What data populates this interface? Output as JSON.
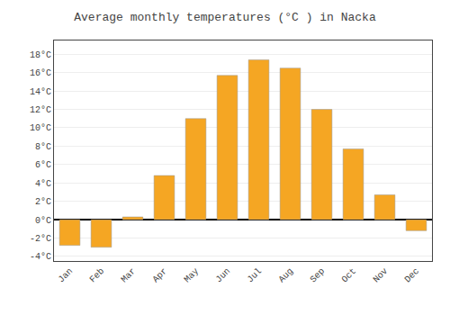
{
  "chart_data": {
    "type": "bar",
    "title": "Average monthly temperatures (°C ) in Nacka",
    "categories": [
      "Jan",
      "Feb",
      "Mar",
      "Apr",
      "May",
      "Jun",
      "Jul",
      "Aug",
      "Sep",
      "Oct",
      "Nov",
      "Dec"
    ],
    "values": [
      -2.8,
      -3.0,
      0.3,
      4.8,
      11.0,
      15.7,
      17.4,
      16.5,
      12.0,
      7.7,
      2.7,
      -1.2
    ],
    "color": "#F5A623",
    "ylim": [
      -4.5,
      19.5
    ],
    "yticks": [
      {
        "value": -4,
        "label": "-4°C"
      },
      {
        "value": -2,
        "label": "-2°C"
      },
      {
        "value": 0,
        "label": "0°C"
      },
      {
        "value": 2,
        "label": "2°C"
      },
      {
        "value": 4,
        "label": "4°C"
      },
      {
        "value": 6,
        "label": "6°C"
      },
      {
        "value": 8,
        "label": "8°C"
      },
      {
        "value": 10,
        "label": "10°C"
      },
      {
        "value": 12,
        "label": "12°C"
      },
      {
        "value": 14,
        "label": "14°C"
      },
      {
        "value": 16,
        "label": "16°C"
      },
      {
        "value": 18,
        "label": "18°C"
      }
    ],
    "grid": true
  }
}
